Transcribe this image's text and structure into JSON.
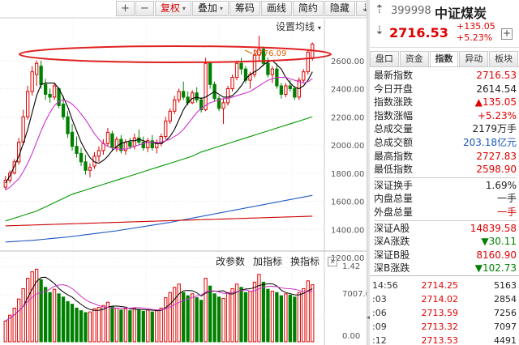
{
  "toolbar": {
    "buttons": [
      "复权",
      "叠加",
      "筹码",
      "画线",
      "简约",
      "隐藏"
    ],
    "icons": [
      "plus-icon",
      "minus-icon",
      "arrow-down-icon",
      "close-icon"
    ],
    "active_button": "复权"
  },
  "ma_setting": "设置均线",
  "annotation": "2776.09",
  "bottom_toolbar": {
    "items": [
      "改参数",
      "加指标",
      "换指标"
    ],
    "close": "x"
  },
  "stock": {
    "code": "399998",
    "name": "中证煤炭",
    "price": "2716.53",
    "change": "+135.05",
    "change_pct": "+5.23%",
    "plus": "+"
  },
  "tabs": [
    "盘口",
    "资金",
    "指数",
    "异动",
    "板块"
  ],
  "active_tab": "指数",
  "stats": [
    {
      "label": "最新指数",
      "value": "2716.53",
      "color": "red"
    },
    {
      "label": "今日开盘",
      "value": "2614.54",
      "color": "black"
    },
    {
      "label": "指数涨跌",
      "value": "▲135.05",
      "color": "red"
    },
    {
      "label": "指数涨幅",
      "value": "+5.23%",
      "color": "red"
    },
    {
      "label": "总成交量",
      "value": "2179万手",
      "color": "black"
    },
    {
      "label": "总成交额",
      "value": "203.18亿元",
      "color": "blue"
    },
    {
      "label": "最高指数",
      "value": "2727.83",
      "color": "red"
    },
    {
      "label": "最低指数",
      "value": "2598.90",
      "color": "red"
    },
    {
      "label": "深证换手",
      "value": "1.69%",
      "color": "black"
    },
    {
      "label": "内盘总量",
      "value": "一手",
      "color": "black"
    },
    {
      "label": "外盘总量",
      "value": "一手",
      "color": "red"
    },
    {
      "label": "深证A股",
      "value": "14839.58",
      "color": "red"
    },
    {
      "label": "深A涨跌",
      "value": "▼30.11",
      "color": "green"
    },
    {
      "label": "深证B股",
      "value": "8160.90",
      "color": "red"
    },
    {
      "label": "深B涨跌",
      "value": "▼102.73",
      "color": "green"
    }
  ],
  "trades": [
    {
      "time": "14:56",
      "price": "2714.25",
      "vol": "5163"
    },
    {
      "time": ":03",
      "price": "2714.02",
      "vol": "2854"
    },
    {
      "time": ":06",
      "price": "2713.59",
      "vol": "7256"
    },
    {
      "time": ":09",
      "price": "2713.32",
      "vol": "7097"
    },
    {
      "time": ":12",
      "price": "2713.53",
      "vol": "4491"
    }
  ],
  "chart_data": {
    "type": "candlestick",
    "y_ticks": [
      "2600.00",
      "2400.00",
      "2200.00",
      "2000.00",
      "1800.00",
      "1600.00",
      "1400.00",
      "1200.00"
    ],
    "y_range": [
      1200,
      2800
    ],
    "volume_ticks": [
      "1.42",
      "7007.00",
      "0.00"
    ],
    "candles": [
      [
        1700,
        1780,
        1680,
        1750
      ],
      [
        1750,
        1820,
        1730,
        1800
      ],
      [
        1800,
        1900,
        1790,
        1880
      ],
      [
        1880,
        2050,
        1860,
        2020
      ],
      [
        2020,
        2250,
        2000,
        2200
      ],
      [
        2200,
        2420,
        2180,
        2380
      ],
      [
        2380,
        2560,
        2350,
        2520
      ],
      [
        2500,
        2600,
        2420,
        2580
      ],
      [
        2560,
        2600,
        2400,
        2430
      ],
      [
        2430,
        2470,
        2320,
        2360
      ],
      [
        2360,
        2400,
        2300,
        2340
      ],
      [
        2340,
        2440,
        2320,
        2420
      ],
      [
        2400,
        2410,
        2260,
        2280
      ],
      [
        2290,
        2350,
        2180,
        2200
      ],
      [
        2200,
        2240,
        2050,
        2080
      ],
      [
        2090,
        2150,
        1960,
        1990
      ],
      [
        1990,
        2060,
        1910,
        1940
      ],
      [
        1940,
        1980,
        1850,
        1880
      ],
      [
        1880,
        1930,
        1790,
        1820
      ],
      [
        1820,
        1870,
        1770,
        1840
      ],
      [
        1850,
        1950,
        1830,
        1920
      ],
      [
        1920,
        1990,
        1880,
        1960
      ],
      [
        1960,
        2040,
        1930,
        2010
      ],
      [
        2010,
        2120,
        1990,
        2090
      ],
      [
        2080,
        2100,
        1960,
        1980
      ],
      [
        1980,
        2060,
        1950,
        2040
      ],
      [
        2040,
        2070,
        1940,
        1960
      ],
      [
        1960,
        2040,
        1930,
        2020
      ],
      [
        2020,
        2050,
        1970,
        1990
      ],
      [
        1990,
        2080,
        1970,
        2050
      ],
      [
        2050,
        2110,
        2000,
        2020
      ],
      [
        2020,
        2060,
        1960,
        1980
      ],
      [
        1980,
        2050,
        1950,
        2030
      ],
      [
        2030,
        2070,
        1960,
        1980
      ],
      [
        1980,
        2040,
        1940,
        2010
      ],
      [
        2010,
        2080,
        1990,
        2060
      ],
      [
        2060,
        2200,
        2040,
        2170
      ],
      [
        2170,
        2260,
        2150,
        2240
      ],
      [
        2240,
        2350,
        2220,
        2320
      ],
      [
        2320,
        2400,
        2300,
        2380
      ],
      [
        2380,
        2450,
        2320,
        2340
      ],
      [
        2340,
        2380,
        2280,
        2300
      ],
      [
        2300,
        2390,
        2290,
        2370
      ],
      [
        2370,
        2410,
        2300,
        2320
      ],
      [
        2320,
        2340,
        2230,
        2250
      ],
      [
        2250,
        2620,
        2240,
        2580
      ],
      [
        2580,
        2590,
        2400,
        2430
      ],
      [
        2430,
        2450,
        2310,
        2330
      ],
      [
        2330,
        2350,
        2240,
        2260
      ],
      [
        2260,
        2330,
        2150,
        2300
      ],
      [
        2300,
        2420,
        2280,
        2400
      ],
      [
        2400,
        2500,
        2380,
        2480
      ],
      [
        2480,
        2600,
        2460,
        2580
      ],
      [
        2580,
        2620,
        2500,
        2540
      ],
      [
        2540,
        2560,
        2440,
        2460
      ],
      [
        2460,
        2520,
        2400,
        2500
      ],
      [
        2500,
        2680,
        2480,
        2640
      ],
      [
        2640,
        2776,
        2600,
        2680
      ],
      [
        2680,
        2700,
        2560,
        2580
      ],
      [
        2580,
        2620,
        2480,
        2500
      ],
      [
        2500,
        2560,
        2440,
        2540
      ],
      [
        2540,
        2580,
        2400,
        2420
      ],
      [
        2420,
        2440,
        2330,
        2360
      ],
      [
        2360,
        2440,
        2340,
        2420
      ],
      [
        2420,
        2460,
        2380,
        2400
      ],
      [
        2400,
        2420,
        2320,
        2340
      ],
      [
        2340,
        2480,
        2320,
        2460
      ],
      [
        2460,
        2540,
        2440,
        2520
      ],
      [
        2520,
        2680,
        2500,
        2660
      ],
      [
        2614,
        2728,
        2599,
        2717
      ]
    ],
    "ma_lines": [
      {
        "name": "MA5",
        "color": "#000000",
        "points": [
          1730,
          1780,
          1850,
          1920,
          2010,
          2110,
          2230,
          2350,
          2430,
          2440,
          2440,
          2440,
          2400,
          2340,
          2270,
          2180,
          2100,
          2020,
          1960,
          1910,
          1880,
          1870,
          1890,
          1920,
          1960,
          1990,
          2010,
          2020,
          2030,
          2030,
          2040,
          2030,
          2020,
          2020,
          2010,
          2010,
          2030,
          2060,
          2110,
          2180,
          2250,
          2300,
          2330,
          2340,
          2330,
          2340,
          2360,
          2380,
          2360,
          2340,
          2340,
          2350,
          2380,
          2420,
          2470,
          2500,
          2520,
          2540,
          2570,
          2590,
          2600,
          2570,
          2540,
          2480,
          2440,
          2410,
          2400,
          2420,
          2460,
          2520
        ]
      },
      {
        "name": "MA10",
        "color": "#cc33cc",
        "points": [
          1680,
          1700,
          1730,
          1760,
          1810,
          1870,
          1940,
          2020,
          2100,
          2170,
          2230,
          2280,
          2310,
          2320,
          2310,
          2290,
          2260,
          2220,
          2180,
          2130,
          2080,
          2040,
          2010,
          1990,
          1980,
          1970,
          1970,
          1970,
          1980,
          1990,
          2000,
          2010,
          2020,
          2020,
          2020,
          2020,
          2030,
          2040,
          2060,
          2080,
          2110,
          2150,
          2190,
          2230,
          2260,
          2280,
          2300,
          2310,
          2320,
          2330,
          2330,
          2340,
          2350,
          2360,
          2370,
          2380,
          2400,
          2420,
          2440,
          2460,
          2470,
          2480,
          2480,
          2480,
          2470,
          2460,
          2450,
          2440,
          2450,
          2470
        ]
      },
      {
        "name": "MA20",
        "color": "#009900",
        "points": [
          1460,
          1470,
          1480,
          1490,
          1500,
          1510,
          1520,
          1530,
          1545,
          1560,
          1575,
          1590,
          1605,
          1620,
          1635,
          1650,
          1660,
          1670,
          1680,
          1690,
          1700,
          1710,
          1720,
          1730,
          1740,
          1750,
          1760,
          1770,
          1780,
          1790,
          1800,
          1810,
          1820,
          1830,
          1840,
          1850,
          1860,
          1870,
          1880,
          1890,
          1900,
          1910,
          1920,
          1935,
          1950,
          1960,
          1970,
          1980,
          1990,
          2000,
          2010,
          2020,
          2030,
          2040,
          2050,
          2060,
          2070,
          2080,
          2090,
          2100,
          2110,
          2120,
          2130,
          2140,
          2150,
          2160,
          2170,
          2180,
          2190,
          2200
        ]
      },
      {
        "name": "MA60",
        "color": "#1a57c2",
        "points": [
          1310,
          1312,
          1314,
          1316,
          1318,
          1320,
          1322,
          1325,
          1328,
          1331,
          1334,
          1337,
          1340,
          1343,
          1346,
          1350,
          1354,
          1358,
          1362,
          1366,
          1370,
          1374,
          1378,
          1382,
          1386,
          1390,
          1395,
          1400,
          1405,
          1410,
          1415,
          1420,
          1425,
          1430,
          1435,
          1440,
          1445,
          1450,
          1456,
          1462,
          1468,
          1474,
          1480,
          1486,
          1492,
          1498,
          1504,
          1510,
          1516,
          1522,
          1528,
          1534,
          1540,
          1546,
          1552,
          1558,
          1564,
          1570,
          1576,
          1582,
          1588,
          1594,
          1600,
          1606,
          1612,
          1618,
          1624,
          1630,
          1636,
          1642
        ]
      },
      {
        "name": "MA120",
        "color": "#cc0000",
        "points": [
          1425,
          1426,
          1427,
          1428,
          1429,
          1430,
          1431,
          1432,
          1433,
          1434,
          1435,
          1436,
          1437,
          1438,
          1439,
          1440,
          1441,
          1442,
          1443,
          1444,
          1445,
          1446,
          1447,
          1448,
          1449,
          1450,
          1451,
          1452,
          1453,
          1454,
          1455,
          1456,
          1457,
          1458,
          1459,
          1460,
          1461,
          1462,
          1463,
          1464,
          1465,
          1466,
          1467,
          1468,
          1469,
          1470,
          1471,
          1472,
          1473,
          1474,
          1475,
          1476,
          1477,
          1478,
          1479,
          1480,
          1481,
          1482,
          1483,
          1484,
          1485,
          1486,
          1487,
          1488,
          1489,
          1490,
          1491,
          1492,
          1493,
          1494
        ]
      }
    ],
    "volumes": [
      3200,
      4100,
      5200,
      6600,
      8200,
      9800,
      10800,
      11200,
      9600,
      8400,
      7600,
      8100,
      7400,
      6900,
      6200,
      5800,
      5200,
      4800,
      4500,
      4600,
      5100,
      5300,
      5600,
      6100,
      5400,
      5200,
      4900,
      5100,
      4800,
      5200,
      5000,
      4700,
      4900,
      4600,
      4800,
      5200,
      6800,
      7600,
      8400,
      8900,
      7600,
      7100,
      7400,
      6800,
      6400,
      9800,
      8600,
      7400,
      6900,
      6700,
      7600,
      8200,
      8900,
      8400,
      7600,
      7800,
      9200,
      10400,
      9200,
      8100,
      7800,
      7600,
      7100,
      7400,
      7200,
      6900,
      7600,
      8200,
      9400,
      8800
    ],
    "series_colors": {
      "up": "#e00000",
      "down": "#008000"
    }
  }
}
